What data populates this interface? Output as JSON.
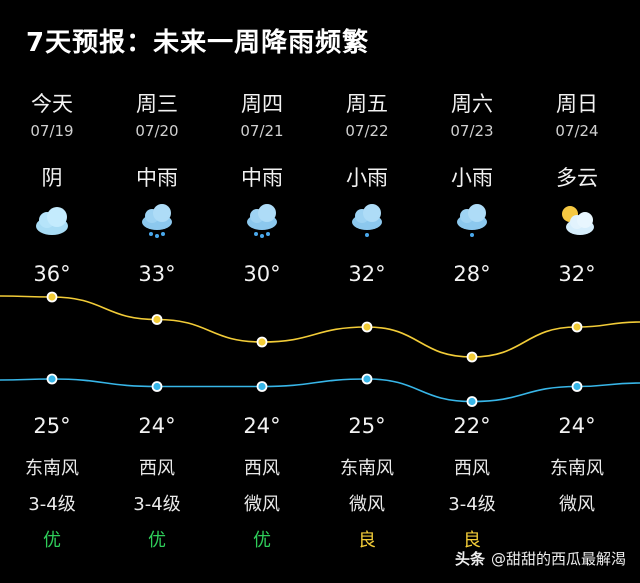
{
  "title": "7天预报：未来一周降雨频繁",
  "days": [
    {
      "day": "今天",
      "date": "07/19",
      "cond": "阴",
      "icon": "cloudy-icon",
      "high": "36°",
      "low": "25°",
      "hi_val": 36,
      "lo_val": 25,
      "wind_dir": "东南风",
      "wind_level": "3-4级",
      "aqi": "优",
      "aqi_level": "good"
    },
    {
      "day": "周三",
      "date": "07/20",
      "cond": "中雨",
      "icon": "rain-icon",
      "high": "33°",
      "low": "24°",
      "hi_val": 33,
      "lo_val": 24,
      "wind_dir": "西风",
      "wind_level": "3-4级",
      "aqi": "优",
      "aqi_level": "good"
    },
    {
      "day": "周四",
      "date": "07/21",
      "cond": "中雨",
      "icon": "rain-icon",
      "high": "30°",
      "low": "24°",
      "hi_val": 30,
      "lo_val": 24,
      "wind_dir": "西风",
      "wind_level": "微风",
      "aqi": "优",
      "aqi_level": "good"
    },
    {
      "day": "周五",
      "date": "07/22",
      "cond": "小雨",
      "icon": "light-rain-icon",
      "high": "32°",
      "low": "25°",
      "hi_val": 32,
      "lo_val": 25,
      "wind_dir": "东南风",
      "wind_level": "微风",
      "aqi": "良",
      "aqi_level": "fair"
    },
    {
      "day": "周六",
      "date": "07/23",
      "cond": "小雨",
      "icon": "light-rain-icon",
      "high": "28°",
      "low": "22°",
      "hi_val": 28,
      "lo_val": 22,
      "wind_dir": "西风",
      "wind_level": "3-4级",
      "aqi": "良",
      "aqi_level": "fair"
    },
    {
      "day": "周日",
      "date": "07/24",
      "cond": "多云",
      "icon": "partly-cloudy-icon",
      "high": "32°",
      "low": "24°",
      "hi_val": 32,
      "lo_val": 24,
      "wind_dir": "东南风",
      "wind_level": "微风",
      "aqi": "",
      "aqi_level": "none"
    }
  ],
  "colors": {
    "high_line": "#f2cc38",
    "low_line": "#38b6e8",
    "good": "#2fce5a",
    "fair": "#f2cc38"
  },
  "watermark": {
    "brand": "头条",
    "author": "@甜甜的西瓜最解渴"
  }
}
